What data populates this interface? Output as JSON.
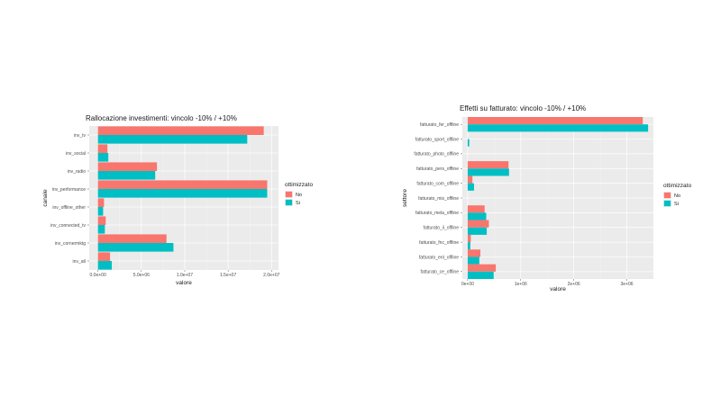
{
  "colors": {
    "no": "#F8766D",
    "si": "#00BFC4",
    "panel": "#EBEBEB",
    "grid_major": "#FFFFFF",
    "grid_minor": "#F5F5F5"
  },
  "chart_data": [
    {
      "type": "bar",
      "orientation": "horizontal",
      "title": "Rallocazione investimenti: vincolo -10% / +10%",
      "xlabel": "valore",
      "ylabel": "canale",
      "xlim": [
        -1000000,
        20800000
      ],
      "x_ticks": [
        0,
        5000000,
        10000000,
        15000000,
        20000000
      ],
      "x_tick_labels": [
        "0.0e+00",
        "5.0e+06",
        "1.0e+07",
        "1.5e+07",
        "2.0e+07"
      ],
      "grid": true,
      "legend_title": "ottimizzato",
      "legend_position": "right",
      "categories": [
        "inv_tv",
        "inv_social",
        "inv_radio",
        "inv_performance",
        "inv_offline_other",
        "inv_connected_tv",
        "inv_cornermktg",
        "inv_atl"
      ],
      "series": [
        {
          "name": "No",
          "values": [
            19100000,
            1100000,
            6800000,
            19500000,
            700000,
            900000,
            7900000,
            1400000
          ]
        },
        {
          "name": "Si",
          "values": [
            17200000,
            1200000,
            6600000,
            19500000,
            600000,
            800000,
            8700000,
            1600000
          ]
        }
      ]
    },
    {
      "type": "bar",
      "orientation": "horizontal",
      "title": "Effetti su fatturato: vincolo -10% / +10%",
      "xlabel": "valore",
      "ylabel": "settore",
      "xlim": [
        -100000,
        3500000
      ],
      "x_ticks": [
        0,
        1000000,
        2000000,
        3000000
      ],
      "x_tick_labels": [
        "0e+00",
        "1e+06",
        "2e+06",
        "3e+06"
      ],
      "grid": true,
      "legend_title": "ottimizzato",
      "legend_position": "right",
      "categories": [
        "fatturato_fer_offline",
        "fatturato_sport_offline",
        "fatturato_photo_offline",
        "fatturato_pers_offline",
        "fatturato_com_offline",
        "fatturato_mis_offline",
        "fatturato_mela_offline",
        "fatturato_ii_offline",
        "fatturato_fnc_offline",
        "fatturato_ent_offline",
        "fatturato_ce_offline"
      ],
      "series": [
        {
          "name": "No",
          "values": [
            3300000,
            0,
            0,
            770000,
            90000,
            0,
            320000,
            400000,
            60000,
            240000,
            530000
          ]
        },
        {
          "name": "Si",
          "values": [
            3400000,
            30000,
            0,
            780000,
            120000,
            0,
            350000,
            360000,
            50000,
            220000,
            490000
          ]
        }
      ]
    }
  ]
}
